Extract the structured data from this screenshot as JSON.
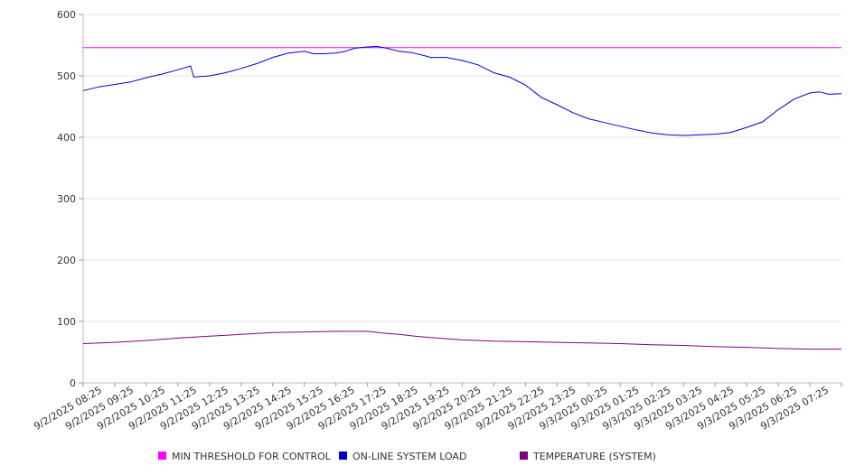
{
  "chart_data": {
    "type": "line",
    "title": "",
    "xlabel": "",
    "ylabel": "",
    "ylim": [
      0,
      600
    ],
    "y_ticks": [
      "0",
      "100",
      "200",
      "300",
      "400",
      "500",
      "600"
    ],
    "grid": "horizontal",
    "legend_position": "bottom",
    "x": [
      "9/2/2025 08:25",
      "9/2/2025 09:25",
      "9/2/2025 10:25",
      "9/2/2025 11:25",
      "9/2/2025 12:25",
      "9/2/2025 13:25",
      "9/2/2025 14:25",
      "9/2/2025 15:25",
      "9/2/2025 16:25",
      "9/2/2025 17:25",
      "9/2/2025 18:25",
      "9/2/2025 19:25",
      "9/2/2025 20:25",
      "9/2/2025 21:25",
      "9/2/2025 22:25",
      "9/2/2025 23:25",
      "9/3/2025 00:25",
      "9/3/2025 01:25",
      "9/3/2025 02:25",
      "9/3/2025 03:25",
      "9/3/2025 04:25",
      "9/3/2025 05:25",
      "9/3/2025 06:25",
      "9/3/2025 07:25"
    ],
    "x_end": "9/3/2025 08:25",
    "series": [
      {
        "name": "MIN THRESHOLD FOR CONTROL",
        "color": "#ff00ff",
        "points": [
          [
            0,
            546
          ],
          [
            24,
            546
          ]
        ]
      },
      {
        "name": "ON-LINE SYSTEM LOAD",
        "color": "#0000cc",
        "points": [
          [
            0,
            476
          ],
          [
            0.5,
            482
          ],
          [
            1,
            486
          ],
          [
            1.5,
            490
          ],
          [
            2,
            497
          ],
          [
            2.5,
            503
          ],
          [
            3,
            510
          ],
          [
            3.4,
            516
          ],
          [
            3.5,
            498
          ],
          [
            4,
            500
          ],
          [
            4.5,
            505
          ],
          [
            5,
            512
          ],
          [
            5.5,
            520
          ],
          [
            6,
            530
          ],
          [
            6.5,
            537
          ],
          [
            7,
            540
          ],
          [
            7.3,
            536
          ],
          [
            7.6,
            536
          ],
          [
            8,
            537
          ],
          [
            8.3,
            540
          ],
          [
            8.6,
            545
          ],
          [
            9,
            547
          ],
          [
            9.3,
            548
          ],
          [
            9.6,
            545
          ],
          [
            10,
            540
          ],
          [
            10.4,
            538
          ],
          [
            10.8,
            533
          ],
          [
            11,
            530
          ],
          [
            11.5,
            530
          ],
          [
            12,
            525
          ],
          [
            12.5,
            518
          ],
          [
            13,
            505
          ],
          [
            13.5,
            498
          ],
          [
            14,
            485
          ],
          [
            14.5,
            465
          ],
          [
            15,
            453
          ],
          [
            15.5,
            440
          ],
          [
            16,
            430
          ],
          [
            16.5,
            424
          ],
          [
            17,
            418
          ],
          [
            17.5,
            412
          ],
          [
            18,
            407
          ],
          [
            18.5,
            404
          ],
          [
            19,
            403
          ],
          [
            19.5,
            404
          ],
          [
            20,
            405
          ],
          [
            20.5,
            408
          ],
          [
            21,
            416
          ],
          [
            21.5,
            425
          ],
          [
            22,
            445
          ],
          [
            22.5,
            462
          ],
          [
            23,
            472
          ],
          [
            23.3,
            474
          ],
          [
            23.6,
            470
          ],
          [
            24,
            471
          ]
        ]
      },
      {
        "name": "TEMPERATURE (SYSTEM)",
        "color": "#800080",
        "points": [
          [
            0,
            64
          ],
          [
            1,
            66
          ],
          [
            2,
            69
          ],
          [
            3,
            73
          ],
          [
            4,
            76
          ],
          [
            5,
            79
          ],
          [
            6,
            82
          ],
          [
            7,
            83
          ],
          [
            8,
            84
          ],
          [
            9,
            84
          ],
          [
            9.5,
            81
          ],
          [
            10,
            79
          ],
          [
            10.5,
            76
          ],
          [
            11,
            74
          ],
          [
            12,
            70
          ],
          [
            13,
            68
          ],
          [
            14,
            67
          ],
          [
            15,
            66
          ],
          [
            16,
            65
          ],
          [
            17,
            64
          ],
          [
            18,
            62
          ],
          [
            19,
            61
          ],
          [
            20,
            59
          ],
          [
            21,
            58
          ],
          [
            22,
            56
          ],
          [
            23,
            55
          ],
          [
            24,
            55
          ]
        ]
      }
    ]
  }
}
